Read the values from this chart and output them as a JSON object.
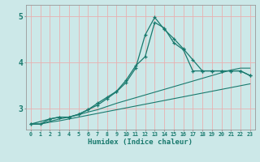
{
  "xlabel": "Humidex (Indice chaleur)",
  "background_color": "#cce8e8",
  "plot_bg_color": "#cce8e8",
  "grid_color": "#e8b0b0",
  "line_color": "#1a7a6e",
  "xlim": [
    -0.5,
    23.5
  ],
  "ylim": [
    2.55,
    5.25
  ],
  "xticks": [
    0,
    1,
    2,
    3,
    4,
    5,
    6,
    7,
    8,
    9,
    10,
    11,
    12,
    13,
    14,
    15,
    16,
    17,
    18,
    19,
    20,
    21,
    22,
    23
  ],
  "yticks": [
    3,
    4,
    5
  ],
  "curve1_x": [
    0,
    1,
    2,
    3,
    4,
    5,
    6,
    7,
    8,
    9,
    10,
    11,
    12,
    13,
    14,
    15,
    16,
    17,
    18,
    19,
    20,
    21,
    22,
    23
  ],
  "curve1_y": [
    2.67,
    2.67,
    2.71,
    2.74,
    2.78,
    2.82,
    2.86,
    2.9,
    2.94,
    2.98,
    3.02,
    3.06,
    3.1,
    3.14,
    3.18,
    3.22,
    3.26,
    3.3,
    3.34,
    3.38,
    3.42,
    3.46,
    3.5,
    3.54
  ],
  "curve2_x": [
    0,
    1,
    2,
    3,
    4,
    5,
    6,
    7,
    8,
    9,
    10,
    11,
    12,
    13,
    14,
    15,
    16,
    17,
    18,
    19,
    20,
    21,
    22,
    23
  ],
  "curve2_y": [
    2.67,
    2.67,
    2.73,
    2.78,
    2.82,
    2.87,
    2.93,
    2.98,
    3.05,
    3.12,
    3.18,
    3.24,
    3.3,
    3.36,
    3.42,
    3.48,
    3.54,
    3.6,
    3.66,
    3.72,
    3.78,
    3.84,
    3.88,
    3.88
  ],
  "curve3_x": [
    0,
    2,
    3,
    4,
    5,
    6,
    7,
    8,
    9,
    10,
    11,
    12,
    13,
    14,
    15,
    16,
    17,
    18,
    19,
    20,
    21,
    22,
    23
  ],
  "curve3_y": [
    2.67,
    2.78,
    2.82,
    2.82,
    2.88,
    2.98,
    3.08,
    3.22,
    3.37,
    3.57,
    3.88,
    4.6,
    4.98,
    4.72,
    4.52,
    4.3,
    4.06,
    3.82,
    3.82,
    3.82,
    3.82,
    3.82,
    3.72
  ],
  "curve4_x": [
    0,
    1,
    2,
    3,
    4,
    5,
    6,
    7,
    8,
    9,
    10,
    11,
    12,
    13,
    14,
    15,
    16,
    17,
    18,
    19,
    20,
    21,
    22,
    23
  ],
  "curve4_y": [
    2.67,
    2.67,
    2.78,
    2.82,
    2.82,
    2.88,
    2.98,
    3.12,
    3.25,
    3.38,
    3.62,
    3.93,
    4.13,
    4.87,
    4.75,
    4.43,
    4.28,
    3.82,
    3.82,
    3.82,
    3.82,
    3.82,
    3.82,
    3.72
  ]
}
